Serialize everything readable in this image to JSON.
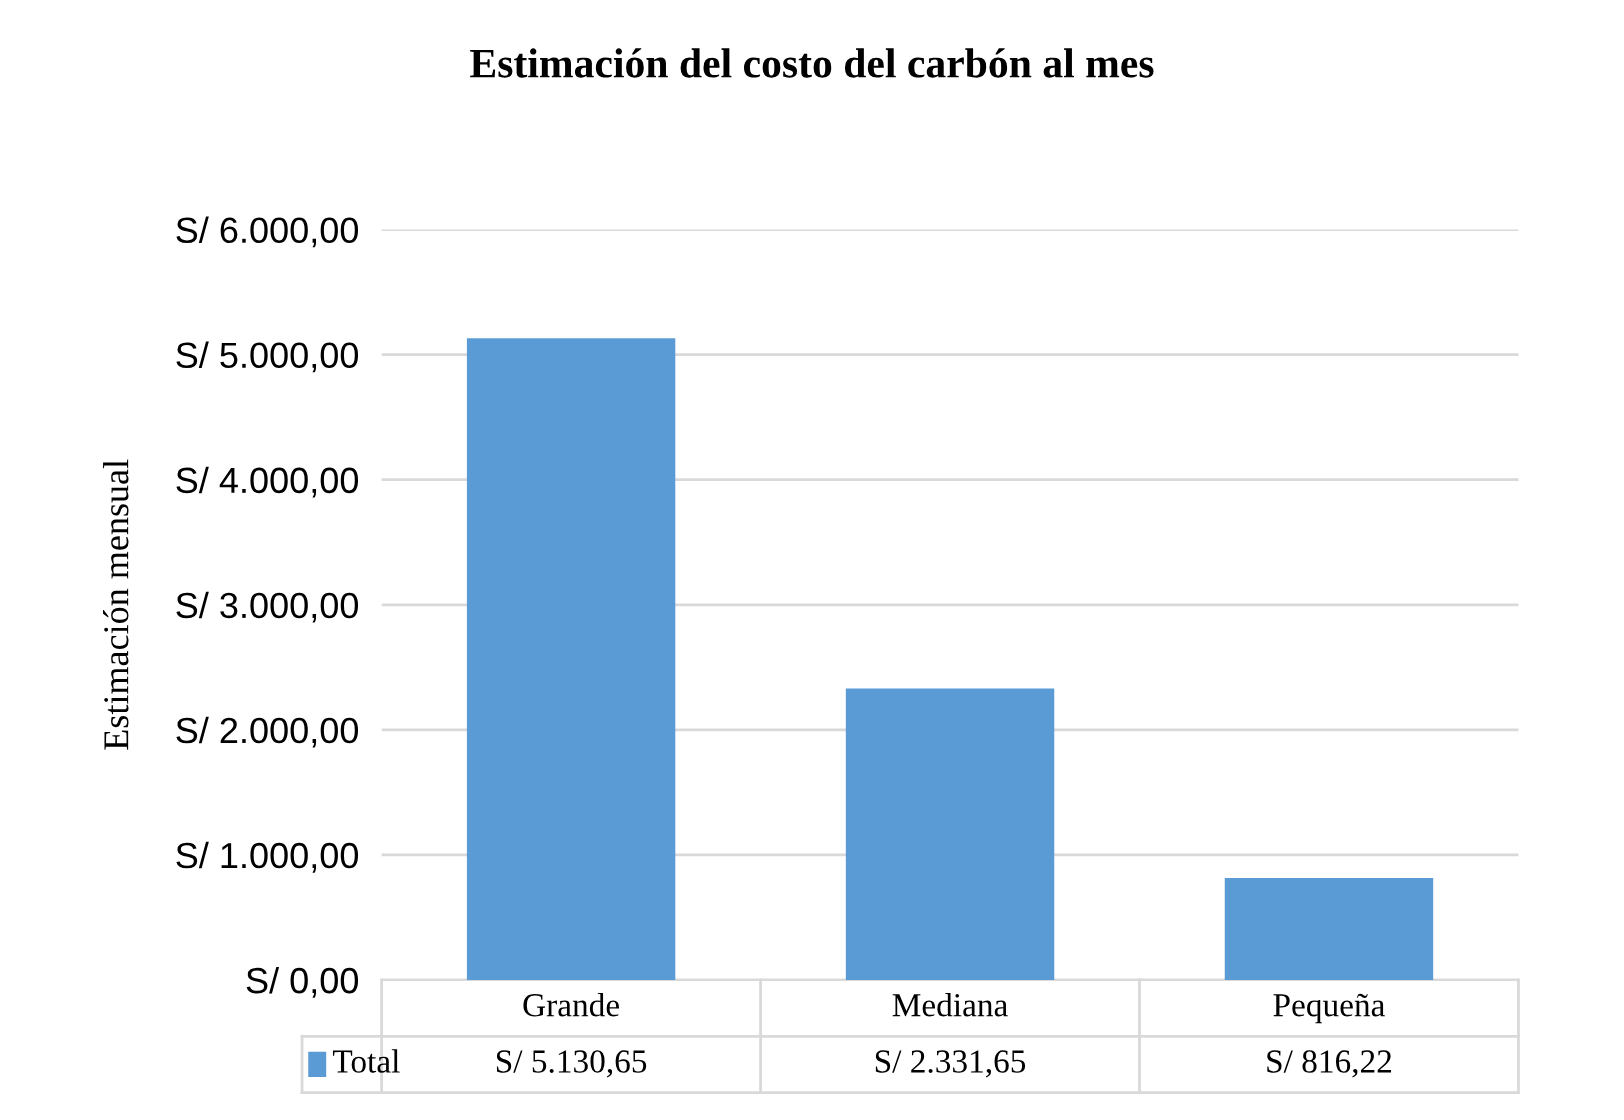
{
  "chart_data": {
    "type": "bar",
    "title": "Estimación del costo del carbón al mes",
    "ylabel": "Estimación mensual",
    "categories": [
      "Grande",
      "Mediana",
      "Pequeña"
    ],
    "series": [
      {
        "name": "Total",
        "color": "#5b9bd5",
        "values": [
          5130.65,
          2331.65,
          816.22
        ],
        "value_labels": [
          "S/ 5.130,65",
          "S/ 2.331,65",
          "S/ 816,22"
        ]
      }
    ],
    "ylim": [
      0,
      6000
    ],
    "yticks": [
      {
        "value": 0,
        "label": "S/ 0,00"
      },
      {
        "value": 1000,
        "label": "S/ 1.000,00"
      },
      {
        "value": 2000,
        "label": "S/ 2.000,00"
      },
      {
        "value": 3000,
        "label": "S/ 3.000,00"
      },
      {
        "value": 4000,
        "label": "S/ 4.000,00"
      },
      {
        "value": 5000,
        "label": "S/ 5.000,00"
      },
      {
        "value": 6000,
        "label": "S/ 6.000,00"
      }
    ],
    "grid": "y",
    "legend": "bottom"
  }
}
